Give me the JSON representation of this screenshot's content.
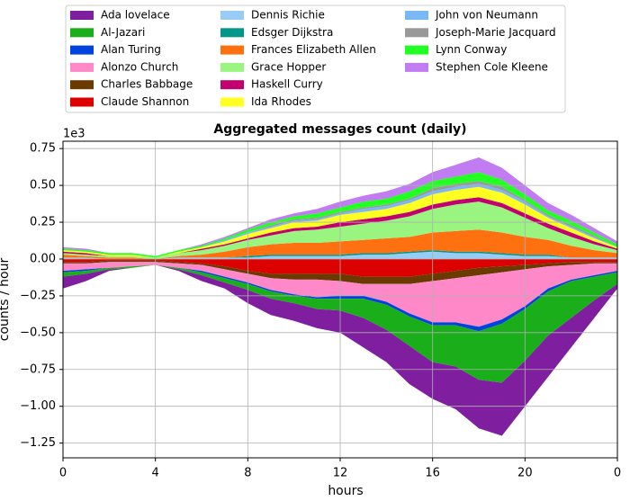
{
  "chart_data": {
    "type": "stacked_area",
    "title": "Aggregated messages count (daily)",
    "xlabel": "hours",
    "ylabel": "counts / hour",
    "y_offset_label": "1e3",
    "x": [
      0,
      1,
      2,
      3,
      4,
      5,
      6,
      7,
      8,
      9,
      10,
      11,
      12,
      13,
      14,
      15,
      16,
      17,
      18,
      19,
      20,
      21,
      22,
      23,
      24
    ],
    "xlim": [
      0,
      24
    ],
    "xticks": [
      0,
      4,
      8,
      12,
      16,
      20,
      {
        "value": 24,
        "label": "0"
      }
    ],
    "ylim": [
      -1.35,
      0.8
    ],
    "yticks": [
      0.75,
      {
        "value": 0.5,
        "label": "0.50"
      },
      0.25,
      {
        "value": 0,
        "label": "0.00"
      },
      {
        "value": -0.25,
        "label": "−0.25"
      },
      {
        "value": -0.5,
        "label": "−0.50"
      },
      {
        "value": -0.75,
        "label": "−0.75"
      },
      {
        "value": -1,
        "label": "−1.00"
      },
      {
        "value": -1.25,
        "label": "−1.25"
      }
    ],
    "grid": true,
    "legend": "top-outside",
    "series": [
      {
        "name": "Ada lovelace",
        "color": "#7f1f9f",
        "values": [
          -0.08,
          -0.05,
          -0.01,
          0,
          0,
          -0.01,
          -0.04,
          -0.04,
          -0.09,
          -0.11,
          -0.12,
          -0.13,
          -0.15,
          -0.2,
          -0.22,
          -0.26,
          -0.25,
          -0.29,
          -0.33,
          -0.36,
          -0.31,
          -0.28,
          -0.2,
          -0.12,
          -0.03
        ]
      },
      {
        "name": "Al-Jazari",
        "color": "#1aaf1a",
        "values": [
          -0.03,
          -0.02,
          -0.01,
          -0.01,
          0,
          -0.01,
          -0.02,
          -0.03,
          -0.04,
          -0.05,
          -0.05,
          -0.07,
          -0.08,
          -0.13,
          -0.17,
          -0.2,
          -0.25,
          -0.28,
          -0.33,
          -0.4,
          -0.35,
          -0.3,
          -0.25,
          -0.16,
          -0.08
        ]
      },
      {
        "name": "Alan Turing",
        "color": "#0044dd",
        "values": [
          -0.01,
          -0.01,
          0,
          0,
          0,
          0,
          -0.01,
          -0.01,
          -0.01,
          -0.01,
          -0.01,
          -0.01,
          -0.02,
          -0.02,
          -0.02,
          -0.02,
          -0.02,
          -0.02,
          -0.03,
          -0.03,
          -0.02,
          -0.02,
          -0.01,
          -0.01,
          -0.01
        ]
      },
      {
        "name": "Alonzo Church",
        "color": "#ff88c8",
        "values": [
          -0.05,
          -0.04,
          -0.04,
          -0.03,
          -0.02,
          -0.03,
          -0.04,
          -0.05,
          -0.06,
          -0.08,
          -0.1,
          -0.12,
          -0.1,
          -0.08,
          -0.12,
          -0.2,
          -0.28,
          -0.3,
          -0.35,
          -0.32,
          -0.25,
          -0.15,
          -0.1,
          -0.08,
          -0.05
        ]
      },
      {
        "name": "Charles Babbage",
        "color": "#6b3a00",
        "values": [
          -0.01,
          -0.01,
          -0.01,
          -0.01,
          -0.01,
          -0.01,
          -0.01,
          -0.02,
          -0.02,
          -0.03,
          -0.04,
          -0.04,
          -0.05,
          -0.05,
          -0.05,
          -0.05,
          -0.05,
          -0.05,
          -0.05,
          -0.04,
          -0.03,
          -0.02,
          -0.02,
          -0.01,
          -0.01
        ]
      },
      {
        "name": "Claude Shannon",
        "color": "#dd0000",
        "values": [
          -0.02,
          -0.02,
          -0.01,
          -0.01,
          -0.01,
          -0.02,
          -0.03,
          -0.05,
          -0.08,
          -0.1,
          -0.1,
          -0.1,
          -0.1,
          -0.12,
          -0.12,
          -0.12,
          -0.1,
          -0.08,
          -0.06,
          -0.05,
          -0.04,
          -0.03,
          -0.02,
          -0.02,
          -0.02
        ]
      },
      {
        "name": "Dennis Richie",
        "color": "#99ccf5",
        "values": [
          0.01,
          0.01,
          0,
          0,
          0,
          0.01,
          0.01,
          0.01,
          0.01,
          0.02,
          0.02,
          0.02,
          0.02,
          0.03,
          0.03,
          0.04,
          0.05,
          0.04,
          0.04,
          0.03,
          0.02,
          0.02,
          0.01,
          0.01,
          0.01
        ]
      },
      {
        "name": "Edsger Dijkstra",
        "color": "#009688",
        "values": [
          0,
          0,
          0,
          0,
          0,
          0,
          0,
          0,
          0.01,
          0.01,
          0.01,
          0.01,
          0.01,
          0.01,
          0.01,
          0.01,
          0.01,
          0.01,
          0.01,
          0.01,
          0.01,
          0.01,
          0,
          0,
          0
        ]
      },
      {
        "name": "Frances Elizabeth Allen",
        "color": "#ff7010",
        "values": [
          0.02,
          0.01,
          0.01,
          0.01,
          0,
          0.01,
          0.02,
          0.04,
          0.06,
          0.07,
          0.08,
          0.08,
          0.09,
          0.09,
          0.1,
          0.1,
          0.12,
          0.14,
          0.15,
          0.14,
          0.12,
          0.1,
          0.08,
          0.05,
          0.03
        ]
      },
      {
        "name": "Grace Hopper",
        "color": "#99f57f",
        "values": [
          0.01,
          0.01,
          0.01,
          0.01,
          0.01,
          0.02,
          0.03,
          0.04,
          0.05,
          0.06,
          0.08,
          0.09,
          0.1,
          0.11,
          0.12,
          0.14,
          0.16,
          0.18,
          0.19,
          0.17,
          0.13,
          0.08,
          0.06,
          0.04,
          0.02
        ]
      },
      {
        "name": "Haskell Curry",
        "color": "#c2006f",
        "values": [
          0.01,
          0.01,
          0,
          0,
          0,
          0,
          0.01,
          0.01,
          0.01,
          0.02,
          0.02,
          0.02,
          0.03,
          0.03,
          0.03,
          0.03,
          0.03,
          0.03,
          0.03,
          0.03,
          0.03,
          0.03,
          0.03,
          0.02,
          0.01
        ]
      },
      {
        "name": "Ida Rhodes",
        "color": "#ffff22",
        "values": [
          0.01,
          0.01,
          0.01,
          0.01,
          0,
          0.01,
          0.01,
          0.02,
          0.03,
          0.03,
          0.04,
          0.04,
          0.05,
          0.05,
          0.05,
          0.06,
          0.07,
          0.07,
          0.07,
          0.07,
          0.06,
          0.04,
          0.03,
          0.02,
          0.01
        ]
      },
      {
        "name": "John von Neumann",
        "color": "#79b8f5",
        "values": [
          0,
          0,
          0,
          0,
          0,
          0,
          0,
          0.01,
          0.01,
          0.01,
          0.01,
          0.01,
          0.01,
          0.02,
          0.02,
          0.02,
          0.02,
          0.02,
          0.02,
          0.02,
          0.02,
          0.01,
          0.01,
          0.01,
          0
        ]
      },
      {
        "name": "Joseph-Marie Jacquard",
        "color": "#999999",
        "values": [
          0,
          0,
          0,
          0,
          0,
          0,
          0,
          0,
          0,
          0.01,
          0.01,
          0.01,
          0.01,
          0.01,
          0.01,
          0.01,
          0.02,
          0.02,
          0.02,
          0.02,
          0.01,
          0.01,
          0.01,
          0.01,
          0
        ]
      },
      {
        "name": "Lynn Conway",
        "color": "#22ff22",
        "values": [
          0.01,
          0.01,
          0.01,
          0.01,
          0.01,
          0.01,
          0.01,
          0.01,
          0.02,
          0.02,
          0.02,
          0.03,
          0.03,
          0.04,
          0.04,
          0.05,
          0.05,
          0.05,
          0.06,
          0.05,
          0.04,
          0.03,
          0.03,
          0.02,
          0.02
        ]
      },
      {
        "name": "Stephen Cole Kleene",
        "color": "#c07cf0",
        "values": [
          0.01,
          0.01,
          0,
          0,
          0,
          0,
          0.01,
          0.01,
          0.01,
          0.02,
          0.02,
          0.03,
          0.04,
          0.04,
          0.05,
          0.05,
          0.06,
          0.08,
          0.1,
          0.08,
          0.06,
          0.05,
          0.04,
          0.03,
          0.02
        ]
      }
    ]
  }
}
